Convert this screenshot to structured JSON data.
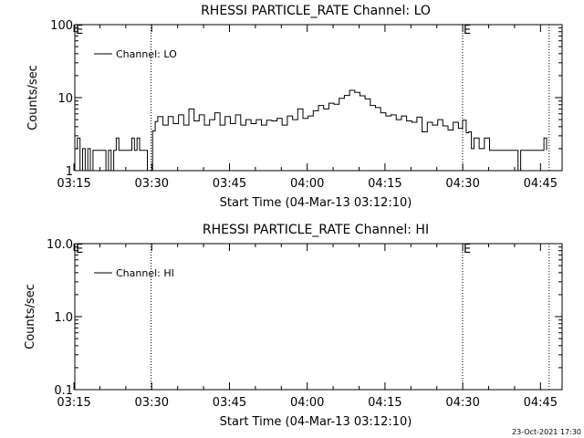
{
  "footer_timestamp": "23-Oct-2021 17:30",
  "chart_data": [
    {
      "type": "line",
      "title": "RHESSI PARTICLE_RATE Channel: LO",
      "xlabel": "Start Time (04-Mar-13 03:12:10)",
      "ylabel": "Counts/sec",
      "yscale": "log",
      "xlim_minutes": [
        3.0,
        97.0
      ],
      "ylim": [
        1,
        100
      ],
      "xticks": [
        "03:15",
        "03:30",
        "03:45",
        "04:00",
        "04:15",
        "04:30",
        "04:45"
      ],
      "yticks": [
        "1",
        "10",
        "100"
      ],
      "legend": "Channel: LO",
      "legend_position": "top-left",
      "event_markers": [
        {
          "label": "E",
          "x_minutes": 3.0
        },
        {
          "label": "",
          "x_minutes": 17.7
        },
        {
          "label": "E",
          "x_minutes": 77.8
        },
        {
          "label": "",
          "x_minutes": 94.5
        }
      ],
      "series": [
        {
          "x_minutes": [
            3.0,
            3.5,
            4.0,
            4.5,
            5.0,
            5.5,
            6.0,
            6.5,
            7.0,
            7.5,
            8.0,
            8.5,
            9.0,
            9.5,
            10.0,
            10.5,
            11.0,
            11.5,
            12.0,
            12.5,
            13.0,
            13.5,
            14.0,
            14.5,
            15.0,
            15.5,
            16.0,
            16.5,
            17.0,
            17.5,
            17.7,
            18.0,
            18.5,
            19.0,
            20.0,
            21.0,
            22.0,
            23.0,
            24.0,
            25.0,
            26.0,
            27.0,
            28.0,
            29.0,
            30.0,
            31.0,
            32.0,
            33.0,
            34.0,
            35.0,
            36.0,
            37.0,
            38.0,
            39.0,
            40.0,
            41.0,
            42.0,
            43.0,
            44.0,
            45.0,
            46.0,
            47.0,
            48.0,
            49.0,
            50.0,
            51.0,
            52.0,
            53.0,
            54.0,
            55.0,
            56.0,
            57.0,
            58.0,
            59.0,
            60.0,
            61.0,
            62.0,
            63.0,
            64.0,
            65.0,
            66.0,
            67.0,
            68.0,
            69.0,
            70.0,
            71.0,
            72.0,
            73.0,
            74.0,
            75.0,
            76.0,
            77.0,
            77.8,
            78.5,
            79.0,
            79.5,
            80.0,
            81.0,
            82.0,
            83.0,
            84.0,
            85.0,
            86.0,
            87.0,
            88.0,
            88.5,
            89.0,
            89.5,
            90.0,
            91.0,
            92.0,
            93.0,
            93.5,
            94.0
          ],
          "values": [
            2.0,
            2.8,
            1.0,
            2.0,
            1.0,
            2.0,
            1.0,
            1.9,
            1.9,
            1.9,
            1.9,
            1.9,
            1.0,
            1.9,
            1.0,
            1.9,
            2.8,
            1.9,
            1.9,
            1.9,
            1.9,
            1.9,
            2.8,
            1.9,
            2.8,
            1.9,
            1.9,
            1.9,
            1.0,
            1.0,
            1.0,
            3.5,
            4.7,
            5.5,
            4.2,
            5.5,
            4.4,
            5.8,
            4.2,
            7.0,
            4.8,
            5.8,
            4.2,
            5.0,
            6.2,
            4.2,
            5.5,
            4.4,
            5.8,
            4.2,
            5.0,
            4.4,
            5.0,
            4.2,
            4.9,
            4.8,
            5.2,
            4.2,
            5.6,
            5.0,
            7.0,
            5.2,
            5.6,
            6.6,
            7.8,
            7.0,
            8.4,
            8.1,
            9.8,
            10.7,
            12.6,
            11.8,
            10.6,
            9.6,
            7.8,
            7.3,
            6.2,
            5.6,
            5.8,
            5.0,
            5.6,
            4.8,
            4.6,
            5.4,
            3.4,
            4.6,
            4.2,
            5.0,
            4.1,
            3.6,
            4.6,
            3.8,
            4.9,
            3.3,
            3.4,
            2.0,
            2.8,
            2.0,
            2.8,
            1.9,
            1.9,
            1.9,
            1.9,
            1.9,
            1.9,
            1.0,
            1.9,
            1.9,
            1.9,
            1.9,
            1.9,
            1.9,
            2.8,
            1.9
          ]
        }
      ]
    },
    {
      "type": "line",
      "title": "RHESSI PARTICLE_RATE Channel: HI",
      "xlabel": "Start Time (04-Mar-13 03:12:10)",
      "ylabel": "Counts/sec",
      "yscale": "log",
      "xlim_minutes": [
        3.0,
        97.0
      ],
      "ylim": [
        0.1,
        10.0
      ],
      "xticks": [
        "03:15",
        "03:30",
        "03:45",
        "04:00",
        "04:15",
        "04:30",
        "04:45"
      ],
      "yticks": [
        "0.1",
        "1.0",
        "10.0"
      ],
      "legend": "Channel: HI",
      "legend_position": "top-left",
      "event_markers": [
        {
          "label": "E",
          "x_minutes": 3.0
        },
        {
          "label": "",
          "x_minutes": 17.7
        },
        {
          "label": "E",
          "x_minutes": 77.8
        },
        {
          "label": "",
          "x_minutes": 94.5
        }
      ],
      "series": [
        {
          "x_minutes": [],
          "values": []
        }
      ]
    }
  ]
}
